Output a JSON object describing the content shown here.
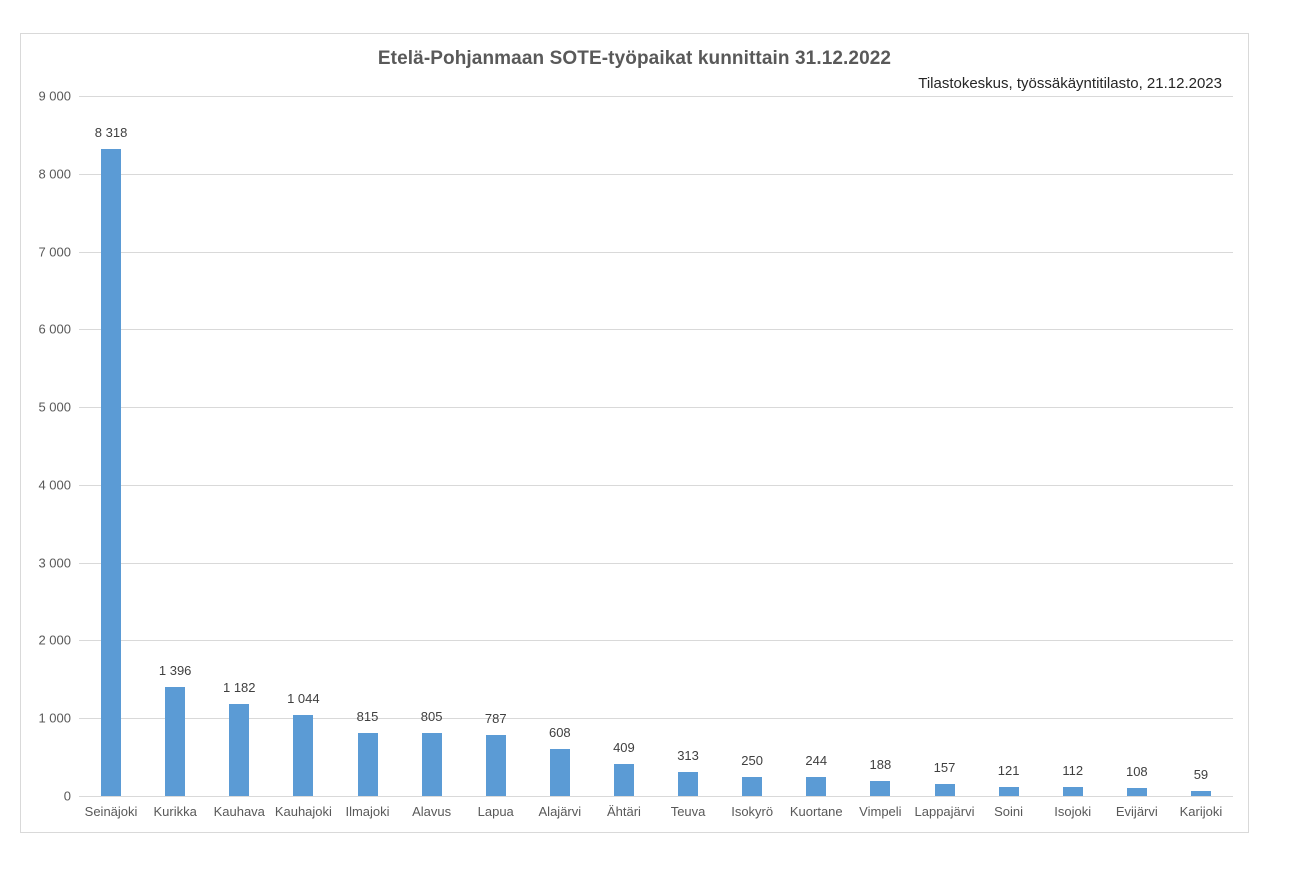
{
  "chart_data": {
    "type": "bar",
    "title": "Etelä-Pohjanmaan SOTE-työpaikat kunnittain 31.12.2022",
    "subtitle": "Tilastokeskus, työssäkäyntitilasto, 21.12.2023",
    "xlabel": "",
    "ylabel": "",
    "ylim": [
      0,
      9000
    ],
    "yticks": [
      0,
      1000,
      2000,
      3000,
      4000,
      5000,
      6000,
      7000,
      8000,
      9000
    ],
    "ytick_labels": [
      "0",
      "1 000",
      "2 000",
      "3 000",
      "4 000",
      "5 000",
      "6 000",
      "7 000",
      "8 000",
      "9 000"
    ],
    "grid": true,
    "legend": null,
    "bar_color": "#5b9bd5",
    "categories": [
      "Seinäjoki",
      "Kurikka",
      "Kauhava",
      "Kauhajoki",
      "Ilmajoki",
      "Alavus",
      "Lapua",
      "Alajärvi",
      "Ähtäri",
      "Teuva",
      "Isokyrö",
      "Kuortane",
      "Vimpeli",
      "Lappajärvi",
      "Soini",
      "Isojoki",
      "Evijärvi",
      "Karijoki"
    ],
    "values": [
      8318,
      1396,
      1182,
      1044,
      815,
      805,
      787,
      608,
      409,
      313,
      250,
      244,
      188,
      157,
      121,
      112,
      108,
      59
    ],
    "value_labels": [
      "8 318",
      "1 396",
      "1 182",
      "1 044",
      "815",
      "805",
      "787",
      "608",
      "409",
      "313",
      "250",
      "244",
      "188",
      "157",
      "121",
      "112",
      "108",
      "59"
    ]
  }
}
